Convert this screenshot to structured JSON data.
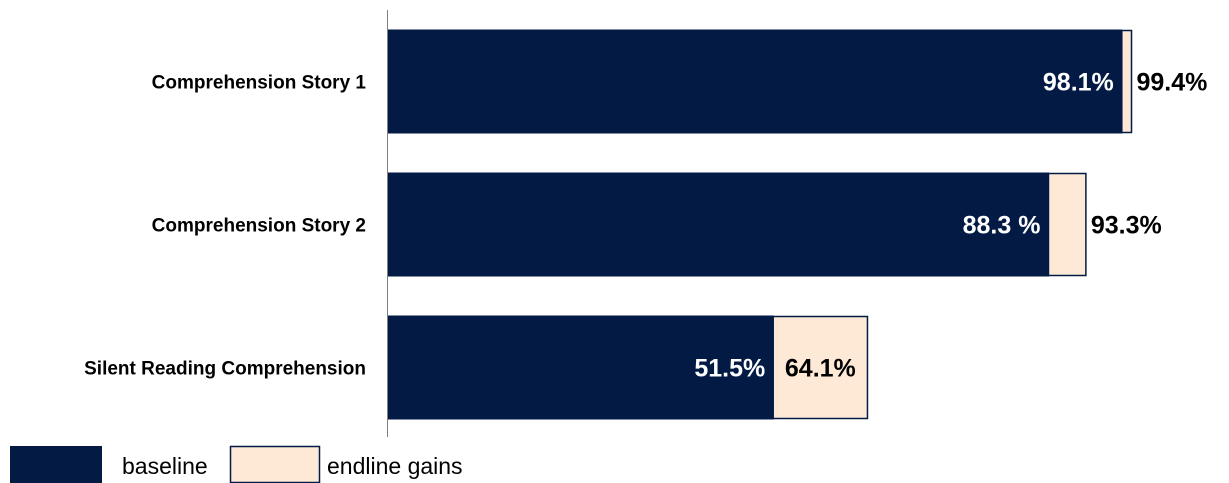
{
  "chart_data": {
    "type": "bar",
    "orientation": "horizontal",
    "stacked": true,
    "categories": [
      "Comprehension Story 1",
      "Comprehension Story 2",
      "Silent Reading Comprehension"
    ],
    "series": [
      {
        "name": "baseline",
        "values": [
          98.1,
          88.3,
          51.5
        ],
        "labels": [
          "98.1%",
          "88.3 %",
          "51.5%"
        ],
        "color": "#031a44"
      },
      {
        "name": "endline gains",
        "values": [
          1.3,
          5.0,
          12.6
        ],
        "labels": [
          "99.4%",
          "93.3%",
          "64.1%"
        ],
        "color": "#fde9d6"
      }
    ],
    "endline_totals": [
      99.4,
      93.3,
      64.1
    ],
    "xlim": [
      0,
      100
    ],
    "grid": false,
    "legend": "bottom-left",
    "colors": {
      "baseline": "#031a44",
      "endline_gains": "#fde9d6",
      "gains_border": "#031a44",
      "axis": "#808080"
    }
  }
}
